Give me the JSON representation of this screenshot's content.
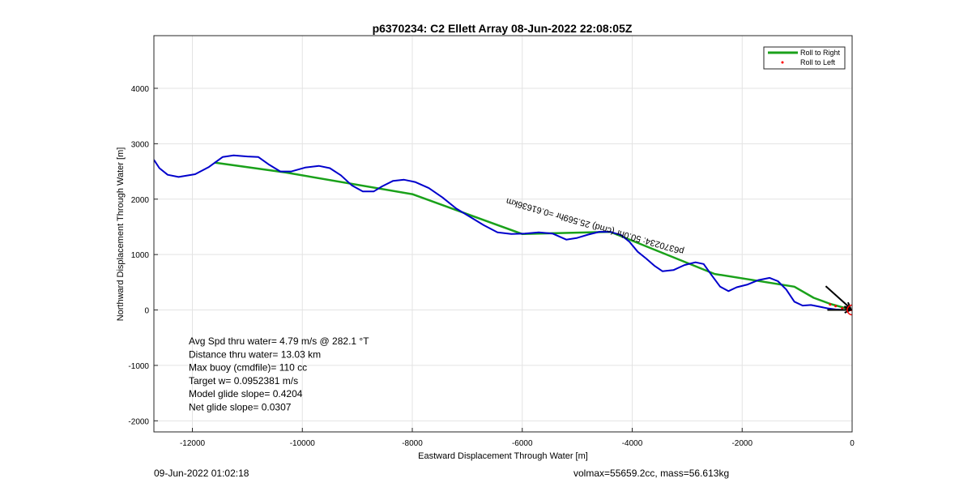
{
  "chart_data": {
    "type": "line",
    "title": "p6370234: C2 Ellett Array 08-Jun-2022 22:08:05Z",
    "xlabel": "Eastward Displacement Through Water [m]",
    "ylabel": "Northward Displacement Through Water [m]",
    "xlim": [
      -12700,
      0
    ],
    "ylim": [
      -2200,
      4950
    ],
    "xticks": [
      -12000,
      -10000,
      -8000,
      -6000,
      -4000,
      -2000,
      0
    ],
    "yticks": [
      -2000,
      -1000,
      0,
      1000,
      2000,
      3000,
      4000
    ],
    "xtick_labels": [
      "-12000",
      "-10000",
      "-8000",
      "-6000",
      "-4000",
      "-2000",
      "0"
    ],
    "ytick_labels": [
      "-2000",
      "-1000",
      "0",
      "1000",
      "2000",
      "3000",
      "4000"
    ],
    "grid": true,
    "legend": {
      "placement": "top-right",
      "entries": [
        {
          "label": "Roll to Right",
          "color": "#1aa11a",
          "style": "line"
        },
        {
          "label": "Roll to Left",
          "color": "#ff0000",
          "style": "marker"
        }
      ]
    },
    "series": [
      {
        "name": "Roll to Right",
        "color": "#1aa11a",
        "x": [
          -11600,
          -10300,
          -8000,
          -6000,
          -4400,
          -2500,
          -1050,
          -700,
          -400,
          0
        ],
        "y": [
          2660,
          2480,
          2090,
          1370,
          1410,
          650,
          420,
          220,
          110,
          0
        ]
      },
      {
        "color": "#0000cc",
        "x": [
          -12700,
          -12600,
          -12450,
          -12250,
          -11950,
          -11700,
          -11450,
          -11250,
          -11000,
          -10800,
          -10600,
          -10400,
          -10200,
          -9950,
          -9700,
          -9500,
          -9300,
          -9100,
          -8900,
          -8700,
          -8550,
          -8350,
          -8150,
          -7950,
          -7700,
          -7450,
          -7200,
          -6950,
          -6700,
          -6450,
          -6200,
          -5950,
          -5700,
          -5450,
          -5200,
          -5000,
          -4800,
          -4600,
          -4400,
          -4200,
          -4050,
          -3900,
          -3750,
          -3600,
          -3450,
          -3250,
          -3050,
          -2850,
          -2700,
          -2550,
          -2400,
          -2250,
          -2100,
          -1900,
          -1700,
          -1500,
          -1350,
          -1200,
          -1050,
          -900,
          -750,
          -600,
          -450,
          -300,
          -150,
          0
        ],
        "y": [
          2710,
          2560,
          2440,
          2400,
          2450,
          2580,
          2760,
          2790,
          2770,
          2760,
          2620,
          2500,
          2500,
          2570,
          2600,
          2560,
          2430,
          2250,
          2140,
          2140,
          2230,
          2330,
          2350,
          2310,
          2200,
          2030,
          1830,
          1680,
          1530,
          1400,
          1370,
          1380,
          1400,
          1380,
          1270,
          1300,
          1360,
          1410,
          1410,
          1350,
          1230,
          1050,
          930,
          800,
          700,
          720,
          810,
          860,
          830,
          620,
          420,
          340,
          410,
          460,
          540,
          580,
          520,
          370,
          150,
          80,
          90,
          60,
          30,
          10,
          0,
          0
        ]
      },
      {
        "name": "Roll to Left",
        "color": "#ff0000",
        "x": [
          -400,
          -300,
          -180,
          -80,
          -20
        ],
        "y": [
          100,
          70,
          30,
          10,
          0
        ]
      }
    ],
    "end_marker": {
      "x": 0,
      "y": 0,
      "color": "#ff0000"
    },
    "arrows": [
      {
        "x0": -450,
        "y0": 0,
        "x1": -30,
        "y1": 0
      },
      {
        "x0": -480,
        "y0": 430,
        "x1": -30,
        "y1": 30
      }
    ],
    "rotated_annotation": {
      "text": "p6370234: 50.0hr (cmd) 25.569hr =0.61636km",
      "x": -3050,
      "y": 1100,
      "angle_deg": 16
    },
    "info_lines": [
      "Avg Spd thru water=  4.79 m/s @ 282.1 °T",
      "Distance thru water= 13.03 km",
      "Max buoy (cmdfile)= 110 cc",
      "Target w= 0.0952381 m/s",
      "Model glide slope= 0.4204",
      "Net glide slope= 0.0307"
    ]
  },
  "footer": {
    "left": "09-Jun-2022 01:02:18",
    "right": "volmax=55659.2cc, mass=56.613kg"
  }
}
